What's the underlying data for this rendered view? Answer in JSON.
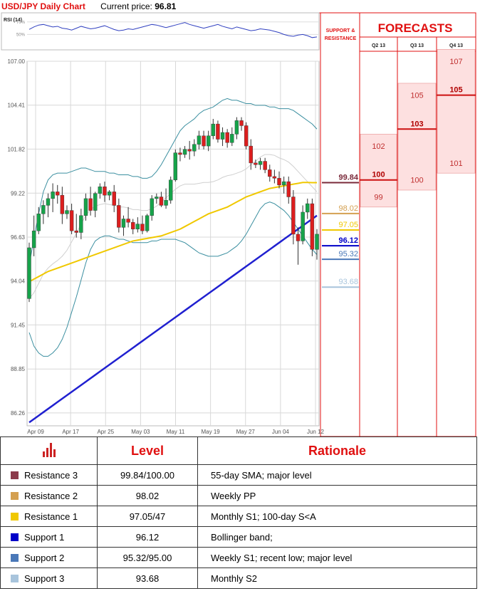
{
  "header": {
    "title": "USD/JPY Daily Chart",
    "price_label": "Current price:",
    "price": "96.81"
  },
  "chart_data": {
    "type": "candlestick",
    "title": "USD/JPY Daily Chart",
    "ylim": [
      85.5,
      107.0
    ],
    "y_ticks": [
      "107.00",
      "104.41",
      "101.82",
      "99.22",
      "96.63",
      "94.04",
      "91.45",
      "88.85",
      "86.26"
    ],
    "y_tick_values": [
      107.0,
      104.41,
      101.82,
      99.22,
      96.63,
      94.04,
      91.45,
      88.85,
      86.26
    ],
    "x_ticks": [
      "Apr 09",
      "Apr 17",
      "Apr 25",
      "May 03",
      "May 11",
      "May 19",
      "May 27",
      "Jun 04",
      "Jun 12"
    ],
    "ohlc": [
      [
        93.0,
        96.3,
        92.8,
        96.0
      ],
      [
        96.0,
        97.9,
        95.5,
        97.0
      ],
      [
        97.0,
        98.4,
        96.8,
        98.0
      ],
      [
        98.0,
        98.8,
        97.4,
        98.5
      ],
      [
        98.5,
        99.2,
        97.8,
        98.9
      ],
      [
        98.9,
        99.8,
        98.1,
        99.3
      ],
      [
        99.3,
        99.7,
        98.6,
        99.1
      ],
      [
        99.1,
        99.6,
        97.4,
        98.0
      ],
      [
        98.0,
        98.5,
        97.7,
        98.2
      ],
      [
        98.2,
        98.6,
        96.8,
        97.0
      ],
      [
        97.0,
        98.0,
        96.6,
        96.9
      ],
      [
        96.9,
        98.3,
        96.5,
        97.9
      ],
      [
        97.9,
        99.2,
        97.6,
        98.9
      ],
      [
        98.9,
        99.6,
        97.9,
        98.2
      ],
      [
        98.2,
        99.3,
        97.8,
        99.2
      ],
      [
        99.2,
        99.8,
        98.9,
        99.6
      ],
      [
        99.6,
        99.9,
        98.7,
        99.1
      ],
      [
        99.1,
        99.4,
        98.8,
        99.3
      ],
      [
        99.3,
        99.7,
        98.1,
        98.5
      ],
      [
        98.5,
        98.9,
        96.9,
        97.2
      ],
      [
        97.2,
        97.9,
        96.7,
        97.7
      ],
      [
        97.7,
        98.4,
        97.2,
        97.5
      ],
      [
        97.5,
        97.7,
        96.8,
        97.1
      ],
      [
        97.1,
        97.8,
        96.9,
        97.4
      ],
      [
        97.4,
        97.9,
        96.8,
        97.0
      ],
      [
        97.0,
        98.0,
        96.9,
        97.9
      ],
      [
        97.9,
        99.1,
        97.6,
        98.9
      ],
      [
        98.9,
        99.2,
        98.6,
        99.0
      ],
      [
        99.0,
        99.3,
        98.4,
        98.5
      ],
      [
        98.5,
        99.5,
        98.3,
        98.8
      ],
      [
        98.8,
        100.2,
        98.6,
        100.0
      ],
      [
        100.0,
        101.8,
        99.9,
        101.6
      ],
      [
        101.6,
        101.9,
        101.1,
        101.5
      ],
      [
        101.5,
        102.0,
        101.3,
        101.8
      ],
      [
        101.8,
        102.3,
        101.2,
        101.7
      ],
      [
        101.7,
        102.4,
        101.4,
        102.1
      ],
      [
        102.1,
        102.9,
        101.8,
        102.6
      ],
      [
        102.6,
        102.9,
        101.8,
        102.0
      ],
      [
        102.0,
        102.9,
        101.7,
        102.6
      ],
      [
        102.6,
        103.6,
        102.4,
        103.3
      ],
      [
        103.3,
        103.5,
        102.2,
        102.4
      ],
      [
        102.4,
        103.1,
        102.0,
        102.8
      ],
      [
        102.8,
        103.0,
        101.9,
        102.2
      ],
      [
        102.2,
        103.1,
        102.0,
        102.7
      ],
      [
        102.7,
        103.7,
        102.4,
        103.5
      ],
      [
        103.5,
        103.7,
        102.9,
        103.2
      ],
      [
        103.2,
        103.4,
        101.8,
        102.0
      ],
      [
        102.0,
        102.4,
        100.6,
        101.0
      ],
      [
        101.0,
        101.2,
        100.7,
        100.9
      ],
      [
        100.9,
        101.3,
        100.6,
        101.1
      ],
      [
        101.1,
        101.3,
        100.4,
        100.6
      ],
      [
        100.6,
        100.9,
        99.9,
        100.2
      ],
      [
        100.2,
        100.6,
        99.8,
        100.1
      ],
      [
        100.1,
        100.5,
        99.5,
        99.7
      ],
      [
        99.7,
        100.2,
        99.2,
        99.9
      ],
      [
        99.9,
        100.2,
        98.6,
        99.0
      ],
      [
        99.0,
        99.4,
        96.2,
        96.8
      ],
      [
        96.8,
        97.2,
        95.0,
        96.4
      ],
      [
        96.4,
        98.5,
        96.2,
        98.1
      ],
      [
        98.1,
        98.9,
        97.7,
        98.6
      ],
      [
        98.6,
        98.9,
        95.5,
        95.9
      ],
      [
        95.9,
        97.1,
        95.3,
        96.8
      ]
    ],
    "sma55": [
      94.0,
      94.15,
      94.3,
      94.45,
      94.6,
      94.7,
      94.8,
      94.9,
      95.0,
      95.1,
      95.2,
      95.3,
      95.4,
      95.5,
      95.6,
      95.7,
      95.8,
      95.9,
      96.0,
      96.1,
      96.2,
      96.3,
      96.4,
      96.45,
      96.5,
      96.55,
      96.6,
      96.65,
      96.7,
      96.8,
      96.9,
      97.0,
      97.1,
      97.25,
      97.4,
      97.55,
      97.7,
      97.85,
      98.0,
      98.1,
      98.2,
      98.3,
      98.4,
      98.55,
      98.7,
      98.85,
      99.0,
      99.1,
      99.2,
      99.3,
      99.4,
      99.5,
      99.55,
      99.6,
      99.65,
      99.7,
      99.75,
      99.8,
      99.85,
      99.85,
      99.84,
      99.84
    ],
    "sma200": [
      85.7,
      85.9,
      86.1,
      86.3,
      86.5,
      86.7,
      86.9,
      87.1,
      87.3,
      87.5,
      87.7,
      87.9,
      88.1,
      88.3,
      88.5,
      88.7,
      88.9,
      89.1,
      89.3,
      89.5,
      89.7,
      89.9,
      90.1,
      90.3,
      90.5,
      90.7,
      90.9,
      91.1,
      91.3,
      91.5,
      91.7,
      91.9,
      92.1,
      92.3,
      92.5,
      92.7,
      92.9,
      93.1,
      93.3,
      93.5,
      93.7,
      93.9,
      94.1,
      94.3,
      94.5,
      94.7,
      94.9,
      95.1,
      95.3,
      95.5,
      95.7,
      95.9,
      96.1,
      96.3,
      96.5,
      96.7,
      96.9,
      97.1,
      97.3,
      97.5,
      97.7,
      97.9
    ],
    "bb_upper": [
      95.0,
      96.5,
      98.0,
      99.3,
      100.0,
      100.3,
      100.4,
      100.4,
      100.4,
      100.5,
      100.6,
      100.7,
      100.7,
      100.6,
      100.5,
      100.5,
      100.5,
      100.4,
      100.4,
      100.3,
      100.3,
      100.3,
      100.2,
      100.2,
      100.1,
      100.1,
      100.2,
      100.5,
      100.9,
      101.4,
      101.9,
      102.4,
      102.9,
      103.2,
      103.4,
      103.6,
      103.9,
      104.1,
      104.2,
      104.3,
      104.5,
      104.7,
      104.8,
      104.7,
      104.7,
      104.6,
      104.5,
      104.5,
      104.4,
      104.4,
      104.4,
      104.3,
      104.3,
      104.2,
      104.2,
      104.2,
      104.1,
      103.9,
      103.7,
      103.5,
      103.3,
      103.0
    ],
    "bb_lower": [
      91.0,
      90.2,
      89.8,
      89.6,
      89.6,
      89.8,
      90.1,
      90.6,
      91.3,
      92.2,
      93.1,
      94.1,
      95.1,
      95.9,
      96.4,
      96.6,
      96.7,
      96.7,
      96.6,
      96.5,
      96.5,
      96.4,
      96.3,
      96.3,
      96.3,
      96.3,
      96.4,
      96.4,
      96.5,
      96.5,
      96.5,
      96.5,
      96.4,
      96.3,
      96.1,
      95.9,
      95.7,
      95.6,
      95.5,
      95.5,
      95.5,
      95.6,
      95.7,
      95.9,
      96.1,
      96.4,
      96.8,
      97.3,
      97.8,
      98.3,
      98.6,
      98.7,
      98.6,
      98.4,
      98.2,
      97.9,
      97.5,
      97.1,
      96.7,
      96.3,
      95.9,
      95.6
    ],
    "rsi": {
      "label": "RSI (14)",
      "levels": [
        "70%",
        "50%"
      ],
      "level_values": [
        70,
        50
      ],
      "values": [
        58,
        62,
        65,
        66,
        64,
        62,
        63,
        60,
        59,
        57,
        60,
        63,
        61,
        59,
        60,
        62,
        64,
        61,
        58,
        56,
        57,
        59,
        58,
        60,
        62,
        64,
        66,
        65,
        63,
        61,
        63,
        65,
        67,
        69,
        66,
        64,
        62,
        60,
        62,
        64,
        66,
        63,
        61,
        59,
        62,
        60,
        58,
        56,
        57,
        59,
        58,
        57,
        55,
        53,
        50,
        48,
        47,
        49,
        50,
        48,
        45,
        46
      ]
    },
    "levels": [
      {
        "label": "99.84",
        "value": 99.84,
        "color": "#7a2a3a"
      },
      {
        "label": "98.02",
        "value": 98.02,
        "color": "#d4a050"
      },
      {
        "label": "97.05",
        "value": 97.05,
        "color": "#f0c800"
      },
      {
        "label": "96.12",
        "value": 96.12,
        "color": "#0000c8"
      },
      {
        "label": "95.32",
        "value": 95.32,
        "color": "#4a78b8"
      },
      {
        "label": "93.68",
        "value": 93.68,
        "color": "#a8c4dc"
      }
    ],
    "forecasts": {
      "title": "FORECASTS",
      "sr_label": "SUPPORT & RESISTANCE",
      "columns": [
        {
          "label": "Q2 13",
          "high": 102,
          "mid": 100,
          "low": 99
        },
        {
          "label": "Q3 13",
          "high": 105,
          "mid": 103,
          "low": 100
        },
        {
          "label": "Q4 13",
          "high": 107,
          "mid": 105,
          "low": 101
        }
      ]
    }
  },
  "table": {
    "headers": [
      "Level",
      "Rationale"
    ],
    "rows": [
      {
        "name": "Resistance 3",
        "level": "99.84/100.00",
        "rationale": "55-day SMA; major level",
        "color": "#8b3a4a"
      },
      {
        "name": "Resistance 2",
        "level": "98.02",
        "rationale": "Weekly PP",
        "color": "#d4a050"
      },
      {
        "name": "Resistance 1",
        "level": "97.05/47",
        "rationale": "Monthly S1; 100-day S<A",
        "color": "#f0c800"
      },
      {
        "name": "Support 1",
        "level": "96.12",
        "rationale": "Bollinger band;",
        "color": "#0000c8"
      },
      {
        "name": "Support 2",
        "level": "95.32/95.00",
        "rationale": "Weekly S1; recent low; major level",
        "color": "#4a78b8"
      },
      {
        "name": "Support 3",
        "level": "93.68",
        "rationale": "Monthly S2",
        "color": "#a8c4dc"
      }
    ]
  },
  "colors": {
    "accent": "#e01010",
    "bull": "#16a34a",
    "bear": "#dc1e1e",
    "sma55": "#f0c800",
    "sma200": "#2020d0",
    "bb": "#3b8fa0",
    "rsi": "#3040c0"
  }
}
